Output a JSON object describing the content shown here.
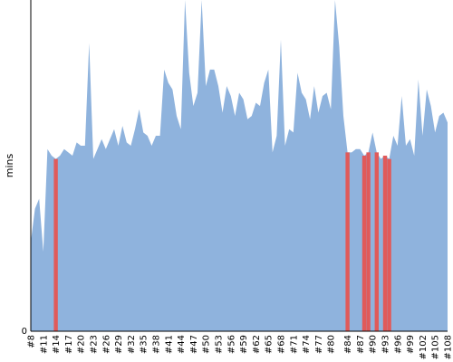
{
  "chart_data": {
    "type": "area",
    "title": "",
    "xlabel": "",
    "ylabel": "mins",
    "y_tick_labels": [
      "0"
    ],
    "ylim": [
      0,
      100
    ],
    "grid": false,
    "legend": "none",
    "colors": {
      "area": "#8fb3dd",
      "highlight": "#e05a5a",
      "axis": "#000000"
    },
    "x": [
      8,
      9,
      10,
      11,
      12,
      13,
      14,
      15,
      16,
      17,
      18,
      19,
      20,
      21,
      22,
      23,
      24,
      25,
      26,
      27,
      28,
      29,
      30,
      31,
      32,
      33,
      34,
      35,
      36,
      37,
      38,
      39,
      40,
      41,
      42,
      43,
      44,
      45,
      46,
      47,
      48,
      49,
      50,
      51,
      52,
      53,
      54,
      55,
      56,
      57,
      58,
      59,
      60,
      61,
      62,
      63,
      64,
      65,
      66,
      67,
      68,
      69,
      70,
      71,
      72,
      73,
      74,
      75,
      76,
      77,
      78,
      79,
      80,
      81,
      82,
      83,
      84,
      85,
      86,
      87,
      88,
      89,
      90,
      91,
      92,
      93,
      94,
      95,
      96,
      97,
      98,
      99,
      100,
      101,
      102,
      103,
      104,
      105,
      106,
      107,
      108
    ],
    "x_tick_labels": [
      "#8",
      "#11",
      "#14",
      "#17",
      "#20",
      "#23",
      "#26",
      "#29",
      "#32",
      "#35",
      "#38",
      "#41",
      "#44",
      "#47",
      "#50",
      "#53",
      "#56",
      "#59",
      "#62",
      "#65",
      "#68",
      "#71",
      "#74",
      "#77",
      "#80",
      "#84",
      "#87",
      "#90",
      "#93",
      "#96",
      "#99",
      "#102",
      "#105",
      "#108"
    ],
    "values": [
      27,
      37,
      40,
      24,
      55,
      53,
      52,
      53,
      55,
      54,
      53,
      57,
      56,
      56,
      87,
      52,
      55,
      58,
      55,
      58,
      61,
      56,
      62,
      57,
      56,
      61,
      67,
      60,
      59,
      56,
      59,
      59,
      79,
      75,
      73,
      65,
      61,
      100,
      78,
      68,
      72,
      100,
      74,
      79,
      79,
      74,
      66,
      74,
      71,
      65,
      72,
      70,
      64,
      65,
      69,
      68,
      75,
      79,
      54,
      59,
      88,
      56,
      61,
      60,
      78,
      72,
      70,
      64,
      74,
      66,
      71,
      72,
      67,
      100,
      86,
      65,
      54,
      54,
      55,
      55,
      53,
      54,
      60,
      54,
      52,
      53,
      52,
      59,
      56,
      71,
      56,
      58,
      53,
      76,
      59,
      73,
      68,
      60,
      65,
      66,
      63
    ],
    "highlighted": [
      14,
      84,
      88,
      89,
      91,
      93,
      94
    ]
  }
}
